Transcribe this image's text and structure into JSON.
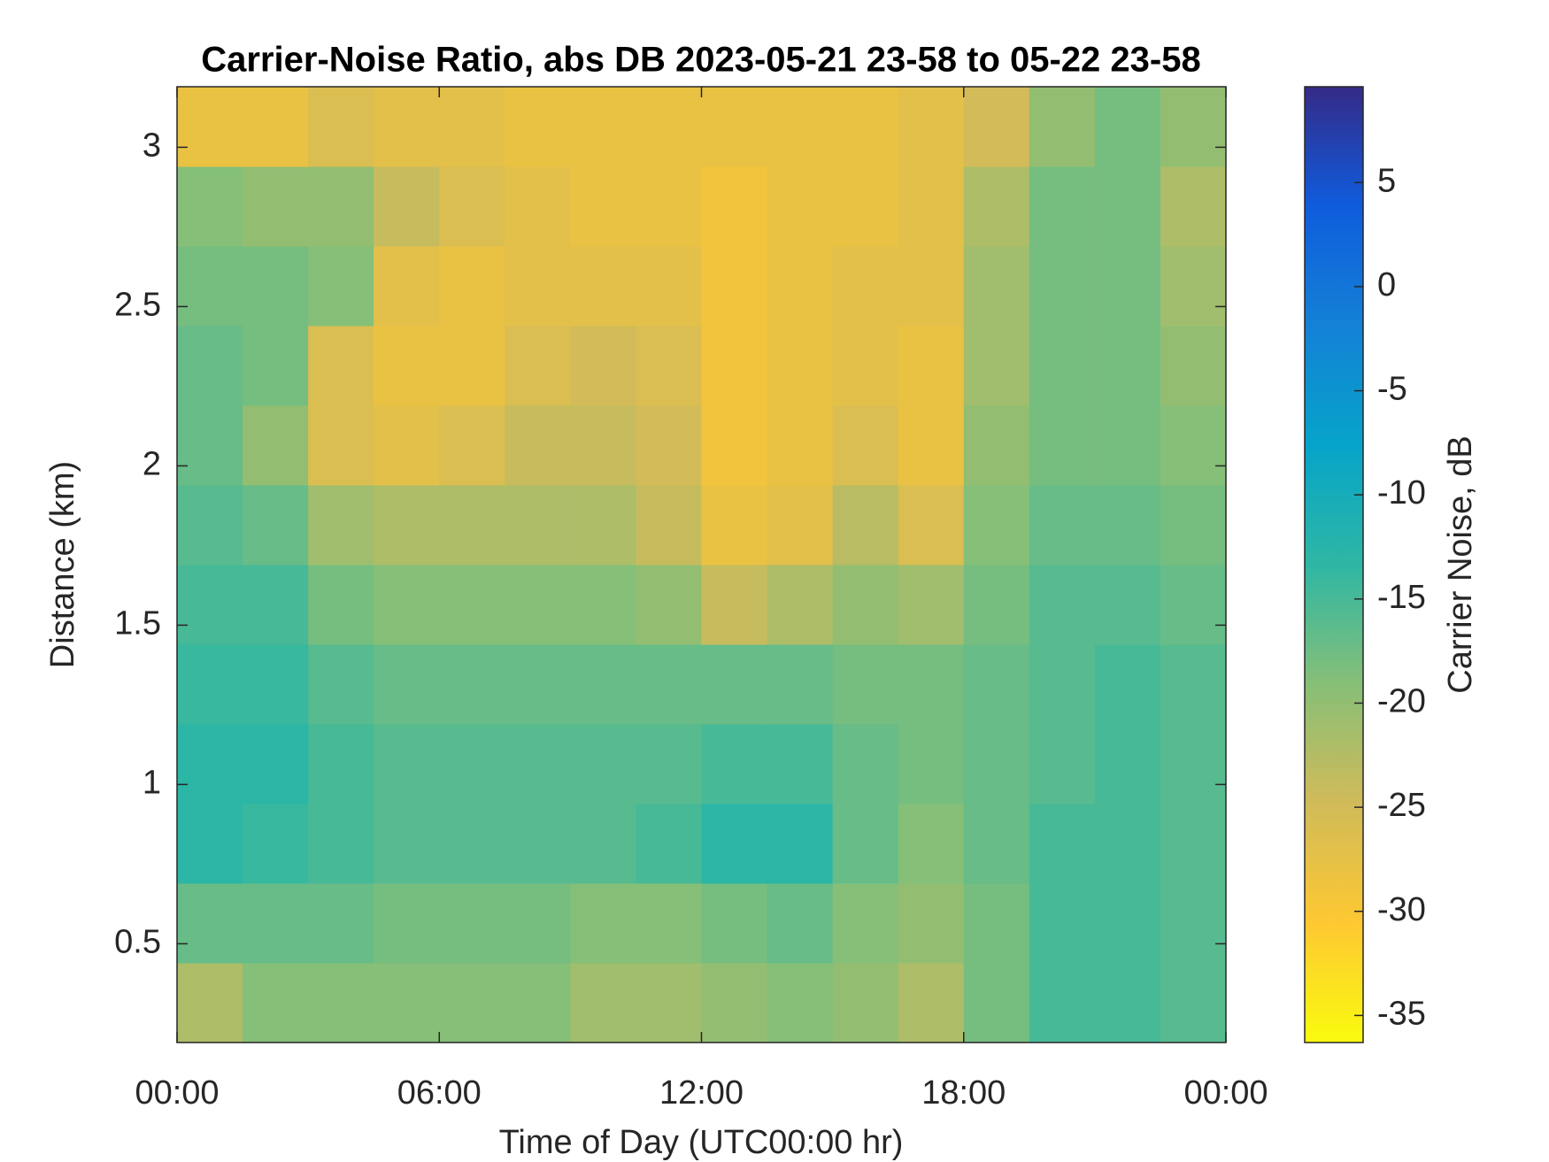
{
  "chart_data": {
    "type": "heatmap",
    "title": "Carrier-Noise Ratio, abs DB 2023-05-21 23-58 to 05-22 23-58",
    "xlabel": "Time of Day (UTC00:00 hr)",
    "ylabel": "Distance (km)",
    "colorbar_label": "Carrier Noise, dB",
    "x": [
      0.75,
      2.25,
      3.75,
      5.25,
      6.75,
      8.25,
      9.75,
      11.25,
      12.75,
      14.25,
      15.75,
      17.25,
      18.75,
      20.25,
      21.75,
      23.25
    ],
    "y": [
      0.315,
      0.565,
      0.815,
      1.065,
      1.315,
      1.565,
      1.815,
      2.065,
      2.315,
      2.565,
      2.815,
      3.065
    ],
    "z": [
      [
        -22,
        -19,
        -19,
        -19,
        -19,
        -19,
        -21,
        -21,
        -20,
        -19,
        -20,
        -22,
        -18,
        -15,
        -15,
        -16
      ],
      [
        -17,
        -17,
        -17,
        -18,
        -18,
        -18,
        -19,
        -19,
        -18,
        -17,
        -19,
        -20,
        -18,
        -15,
        -15,
        -16
      ],
      [
        -13,
        -14,
        -15,
        -16,
        -16,
        -16,
        -16,
        -15,
        -13,
        -13,
        -17,
        -19,
        -17,
        -15,
        -15,
        -16
      ],
      [
        -13,
        -13,
        -15,
        -16,
        -16,
        -16,
        -16,
        -16,
        -15,
        -15,
        -17,
        -18,
        -17,
        -16,
        -15,
        -16
      ],
      [
        -14,
        -14,
        -16,
        -17,
        -17,
        -17,
        -17,
        -17,
        -17,
        -17,
        -18,
        -18,
        -17,
        -16,
        -15,
        -16
      ],
      [
        -15,
        -15,
        -18,
        -19,
        -19,
        -19,
        -19,
        -20,
        -24,
        -22,
        -20,
        -21,
        -18,
        -16,
        -16,
        -17
      ],
      [
        -16,
        -17,
        -21,
        -22,
        -22,
        -22,
        -22,
        -24,
        -28,
        -27,
        -23,
        -26,
        -19,
        -17,
        -17,
        -18
      ],
      [
        -17,
        -20,
        -26,
        -27,
        -26,
        -24,
        -24,
        -25,
        -29,
        -28,
        -26,
        -28,
        -20,
        -18,
        -18,
        -19
      ],
      [
        -17,
        -18,
        -26,
        -28,
        -28,
        -26,
        -25,
        -26,
        -29,
        -28,
        -27,
        -28,
        -21,
        -18,
        -18,
        -20
      ],
      [
        -18,
        -18,
        -19,
        -27,
        -28,
        -27,
        -27,
        -27,
        -29,
        -28,
        -27,
        -27,
        -21,
        -18,
        -18,
        -21
      ],
      [
        -19,
        -20,
        -20,
        -24,
        -26,
        -27,
        -28,
        -28,
        -29,
        -28,
        -28,
        -27,
        -22,
        -18,
        -18,
        -22
      ],
      [
        -28,
        -28,
        -26,
        -27,
        -27,
        -28,
        -28,
        -28,
        -28,
        -28,
        -28,
        -27,
        -25,
        -20,
        -18,
        -20
      ]
    ],
    "xlim": [
      0,
      24
    ],
    "xticks": [
      {
        "value": 0,
        "label": "00:00"
      },
      {
        "value": 6,
        "label": "06:00"
      },
      {
        "value": 12,
        "label": "12:00"
      },
      {
        "value": 18,
        "label": "18:00"
      },
      {
        "value": 24,
        "label": "00:00"
      }
    ],
    "ylim": [
      0.19,
      3.19
    ],
    "yticks": [
      0.5,
      1,
      1.5,
      2,
      2.5,
      3
    ],
    "clim": [
      -36.3,
      9.6
    ],
    "cticks": [
      -35,
      -30,
      -25,
      -20,
      -15,
      -10,
      -5,
      0,
      5
    ],
    "colormap": [
      "#f9fb0e",
      "#fec832",
      "#d1bb59",
      "#87bf77",
      "#2eb7a4",
      "#06a4ca",
      "#1481d6",
      "#0f5cdd",
      "#352a87"
    ]
  }
}
